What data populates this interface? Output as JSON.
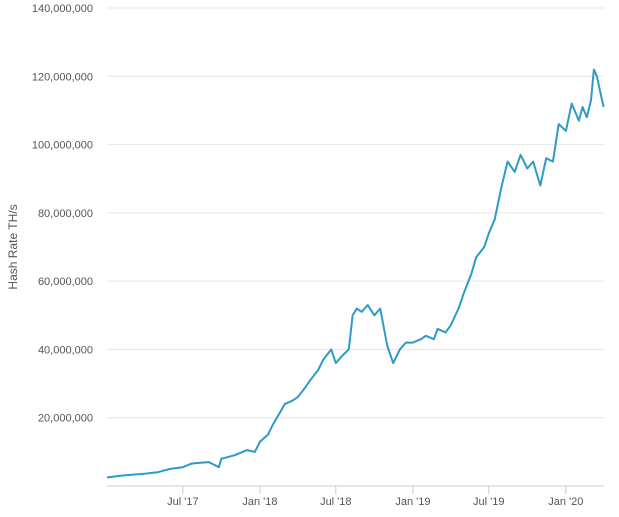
{
  "chart_data": {
    "type": "line",
    "title": "",
    "xlabel": "",
    "ylabel": "Hash Rate TH/s",
    "ylim": [
      0,
      140000000
    ],
    "xlim": [
      "2017-01-01",
      "2020-04-01"
    ],
    "grid": true,
    "y_ticks": [
      {
        "value": 20000000,
        "label": "20,000,000"
      },
      {
        "value": 40000000,
        "label": "40,000,000"
      },
      {
        "value": 60000000,
        "label": "60,000,000"
      },
      {
        "value": 80000000,
        "label": "80,000,000"
      },
      {
        "value": 100000000,
        "label": "100,000,000"
      },
      {
        "value": 120000000,
        "label": "120,000,000"
      },
      {
        "value": 140000000,
        "label": "140,000,000"
      }
    ],
    "x_ticks": [
      {
        "date": "2017-07-01",
        "label": "Jul '17"
      },
      {
        "date": "2018-01-01",
        "label": "Jan '18"
      },
      {
        "date": "2018-07-01",
        "label": "Jul '18"
      },
      {
        "date": "2019-01-01",
        "label": "Jan '19"
      },
      {
        "date": "2019-07-01",
        "label": "Jul '19"
      },
      {
        "date": "2020-01-01",
        "label": "Jan '20"
      }
    ],
    "line_color": "#2f9ac6",
    "series": [
      {
        "x": [
          "2017-01-01",
          "2017-02-01",
          "2017-03-01",
          "2017-04-01",
          "2017-05-01",
          "2017-06-01",
          "2017-07-01",
          "2017-07-20",
          "2017-08-01",
          "2017-09-01",
          "2017-09-25",
          "2017-10-01",
          "2017-11-01",
          "2017-12-01",
          "2017-12-20",
          "2018-01-01",
          "2018-01-20",
          "2018-02-01",
          "2018-02-20",
          "2018-03-01",
          "2018-03-20",
          "2018-04-01",
          "2018-04-20",
          "2018-05-01",
          "2018-05-20",
          "2018-06-01",
          "2018-06-20",
          "2018-07-01",
          "2018-07-15",
          "2018-08-01",
          "2018-08-10",
          "2018-08-20",
          "2018-09-01",
          "2018-09-15",
          "2018-10-01",
          "2018-10-15",
          "2018-11-01",
          "2018-11-15",
          "2018-12-01",
          "2018-12-15",
          "2019-01-01",
          "2019-01-20",
          "2019-02-01",
          "2019-02-20",
          "2019-03-01",
          "2019-03-20",
          "2019-04-01",
          "2019-04-20",
          "2019-05-01",
          "2019-05-20",
          "2019-06-01",
          "2019-06-20",
          "2019-07-01",
          "2019-07-15",
          "2019-08-01",
          "2019-08-15",
          "2019-09-01",
          "2019-09-15",
          "2019-10-01",
          "2019-10-15",
          "2019-11-01",
          "2019-11-15",
          "2019-12-01",
          "2019-12-15",
          "2020-01-01",
          "2020-01-15",
          "2020-02-01",
          "2020-02-10",
          "2020-02-20",
          "2020-03-01",
          "2020-03-08",
          "2020-03-15",
          "2020-03-22",
          "2020-03-31"
        ],
        "y": [
          2500000,
          3000000,
          3300000,
          3600000,
          4000000,
          5000000,
          5500000,
          6500000,
          6700000,
          7000000,
          5500000,
          8000000,
          9000000,
          10500000,
          10000000,
          13000000,
          15000000,
          18000000,
          22000000,
          24000000,
          25000000,
          26000000,
          29000000,
          31000000,
          34000000,
          37000000,
          40000000,
          36000000,
          38000000,
          40000000,
          50000000,
          52000000,
          51000000,
          53000000,
          50000000,
          52000000,
          41000000,
          36000000,
          40000000,
          42000000,
          42000000,
          43000000,
          44000000,
          43000000,
          46000000,
          45000000,
          47000000,
          52000000,
          56000000,
          62000000,
          67000000,
          70000000,
          74000000,
          78000000,
          88000000,
          95000000,
          92000000,
          97000000,
          93000000,
          95000000,
          88000000,
          96000000,
          95000000,
          106000000,
          104000000,
          112000000,
          107000000,
          111000000,
          108000000,
          113000000,
          122000000,
          120000000,
          116000000,
          111000000
        ]
      }
    ]
  }
}
